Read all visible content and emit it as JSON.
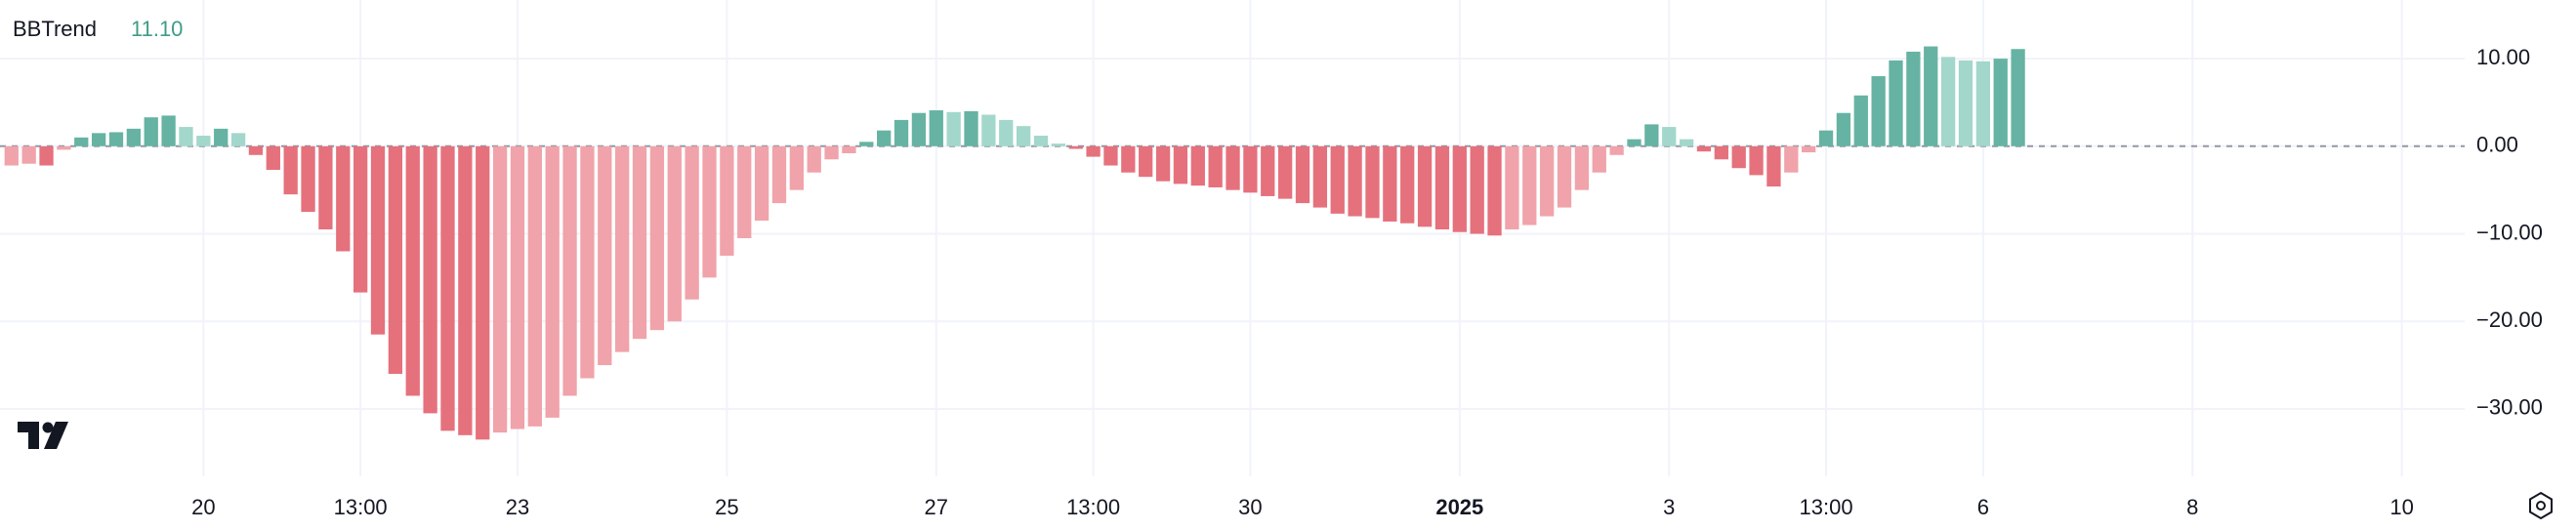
{
  "chart_data": {
    "type": "histogram-oscillator",
    "legend": {
      "name": "BBTrend",
      "value_label": "11.10",
      "color": "#3f9c87"
    },
    "series": [
      {
        "name": "BBTrend",
        "values": [
          -2.2,
          -2.0,
          -2.2,
          -0.4,
          1.0,
          1.5,
          1.6,
          2.0,
          3.3,
          3.5,
          2.2,
          1.2,
          2.0,
          1.5,
          -1.0,
          -2.7,
          -5.5,
          -7.5,
          -9.5,
          -12,
          -16.7,
          -21.5,
          -26,
          -28.5,
          -30.5,
          -32.5,
          -33,
          -33.5,
          -32.7,
          -32.3,
          -32,
          -31,
          -28.5,
          -26.5,
          -25,
          -23.5,
          -22,
          -21,
          -20,
          -17.5,
          -15,
          -12.5,
          -10.5,
          -8.5,
          -6.5,
          -5,
          -3,
          -1.5,
          -0.8,
          0.5,
          1.8,
          3,
          3.8,
          4.1,
          3.9,
          4.0,
          3.6,
          3.0,
          2.3,
          1.2,
          0.3,
          -0.3,
          -1.2,
          -2.2,
          -3,
          -3.5,
          -4,
          -4.3,
          -4.5,
          -4.7,
          -5,
          -5.3,
          -5.7,
          -6,
          -6.5,
          -7,
          -7.7,
          -8,
          -8.2,
          -8.6,
          -8.8,
          -9.2,
          -9.5,
          -9.8,
          -10,
          -10.2,
          -9.5,
          -9,
          -8,
          -7,
          -5,
          -3,
          -1,
          0.8,
          2.5,
          2.2,
          0.8,
          -0.6,
          -1.5,
          -2.5,
          -3.3,
          -4.6,
          -3,
          -0.7,
          1.8,
          3.8,
          5.8,
          8,
          9.8,
          10.8,
          11.4,
          10.2,
          9.8,
          9.7,
          10,
          11.1
        ]
      }
    ],
    "palette": {
      "positive_rising": "#66b3a3",
      "positive_falling": "#a3d7cb",
      "negative_falling": "#e5717c",
      "negative_rising": "#f0a3aa"
    },
    "baseline": 0,
    "xlim": [
      -0.66,
      140.6
    ],
    "xticks": [
      {
        "value": 11,
        "label": "20"
      },
      {
        "value": 20,
        "label": "13:00"
      },
      {
        "value": 29,
        "label": "23"
      },
      {
        "value": 41,
        "label": "25"
      },
      {
        "value": 53,
        "label": "27"
      },
      {
        "value": 62,
        "label": "13:00"
      },
      {
        "value": 71,
        "label": "30"
      },
      {
        "value": 83,
        "label": "2025",
        "bold": true
      },
      {
        "value": 95,
        "label": "3"
      },
      {
        "value": 104,
        "label": "13:00"
      },
      {
        "value": 113,
        "label": "6"
      },
      {
        "value": 125,
        "label": "8"
      },
      {
        "value": 137,
        "label": "10"
      }
    ],
    "ylim": [
      -37.7,
      16.7
    ],
    "yticks": [
      {
        "value": 10,
        "label": "10.00"
      },
      {
        "value": 0,
        "label": "0.00"
      },
      {
        "value": -10,
        "label": "−10.00"
      },
      {
        "value": -20,
        "label": "−20.00"
      },
      {
        "value": -30,
        "label": "−30.00"
      }
    ],
    "grid": true
  }
}
